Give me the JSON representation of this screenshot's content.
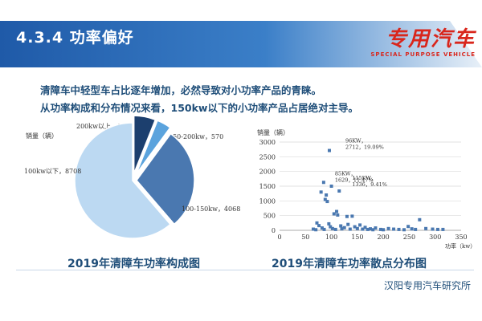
{
  "header": {
    "section_title": "4.3.4 功率偏好",
    "logo_main": "专用汽车",
    "logo_sub": "SPECIAL PURPOSE VEHICLE"
  },
  "intro": {
    "line1": "清障车中轻型车占比逐年增加，必然导致对小功率产品的青睐。",
    "line2": "从功率构成和分布情况来看，150kw以下的小功率产品占居绝对主导。"
  },
  "colors": {
    "header_blue": "#1f5aa8",
    "title_blue": "#1f4e79",
    "pie": [
      "#1c3f6e",
      "#5ba3dd",
      "#4a78b0",
      "#bcd9f2"
    ],
    "scatter_point": "#4a78b0"
  },
  "chart_data": [
    {
      "type": "pie",
      "title": "2019年清障车功率构成图",
      "ylabel": "销量（辆）",
      "slices": [
        {
          "label": "200kw以上",
          "value": 857
        },
        {
          "label": "150-200kw",
          "value": 570
        },
        {
          "label": "100-150kw",
          "value": 4068
        },
        {
          "label": "100kw以下",
          "value": 8708
        }
      ],
      "slice_labels": [
        "200kw以上，857",
        "150-200kw，570",
        "100-150kw，4068",
        "100kw以下，8708"
      ]
    },
    {
      "type": "scatter",
      "title": "2019年清障车功率散点分布图",
      "ylabel": "销量（辆）",
      "xlabel": "功率（kw）",
      "xlim": [
        0,
        350
      ],
      "ylim": [
        0,
        3000
      ],
      "xticks": [
        0,
        50,
        100,
        150,
        200,
        250,
        300,
        350
      ],
      "yticks": [
        0,
        500,
        1000,
        1500,
        2000,
        2500,
        3000
      ],
      "grid": true,
      "annotations": [
        {
          "x": 96,
          "y": 2712,
          "lines": [
            "96KW，",
            "2712，19.09%"
          ]
        },
        {
          "x": 85,
          "y": 1629,
          "lines": [
            "85KW，",
            "1629，11.47%"
          ]
        },
        {
          "x": 115,
          "y": 1336,
          "lines": [
            "115KW，",
            "1336，9.41%"
          ]
        }
      ],
      "points": [
        {
          "x": 96,
          "y": 2712
        },
        {
          "x": 85,
          "y": 1629
        },
        {
          "x": 115,
          "y": 1336
        },
        {
          "x": 80,
          "y": 1300
        },
        {
          "x": 90,
          "y": 1200
        },
        {
          "x": 88,
          "y": 1050
        },
        {
          "x": 100,
          "y": 1500
        },
        {
          "x": 92,
          "y": 980
        },
        {
          "x": 105,
          "y": 560
        },
        {
          "x": 110,
          "y": 640
        },
        {
          "x": 112,
          "y": 520
        },
        {
          "x": 130,
          "y": 470
        },
        {
          "x": 140,
          "y": 480
        },
        {
          "x": 72,
          "y": 250
        },
        {
          "x": 76,
          "y": 160
        },
        {
          "x": 82,
          "y": 80
        },
        {
          "x": 86,
          "y": 30
        },
        {
          "x": 95,
          "y": 220
        },
        {
          "x": 98,
          "y": 120
        },
        {
          "x": 102,
          "y": 60
        },
        {
          "x": 108,
          "y": 30
        },
        {
          "x": 118,
          "y": 150
        },
        {
          "x": 120,
          "y": 50
        },
        {
          "x": 125,
          "y": 90
        },
        {
          "x": 132,
          "y": 200
        },
        {
          "x": 136,
          "y": 40
        },
        {
          "x": 145,
          "y": 120
        },
        {
          "x": 150,
          "y": 60
        },
        {
          "x": 155,
          "y": 180
        },
        {
          "x": 160,
          "y": 40
        },
        {
          "x": 165,
          "y": 100
        },
        {
          "x": 170,
          "y": 30
        },
        {
          "x": 175,
          "y": 50
        },
        {
          "x": 180,
          "y": 20
        },
        {
          "x": 185,
          "y": 80
        },
        {
          "x": 195,
          "y": 30
        },
        {
          "x": 200,
          "y": 20
        },
        {
          "x": 210,
          "y": 60
        },
        {
          "x": 220,
          "y": 40
        },
        {
          "x": 230,
          "y": 30
        },
        {
          "x": 240,
          "y": 20
        },
        {
          "x": 248,
          "y": 130
        },
        {
          "x": 255,
          "y": 50
        },
        {
          "x": 262,
          "y": 30
        },
        {
          "x": 270,
          "y": 360
        },
        {
          "x": 282,
          "y": 60
        },
        {
          "x": 295,
          "y": 40
        },
        {
          "x": 305,
          "y": 30
        },
        {
          "x": 315,
          "y": 30
        },
        {
          "x": 65,
          "y": 40
        },
        {
          "x": 70,
          "y": 20
        }
      ]
    }
  ],
  "footer": {
    "text": "汉阳专用汽车研究所"
  }
}
